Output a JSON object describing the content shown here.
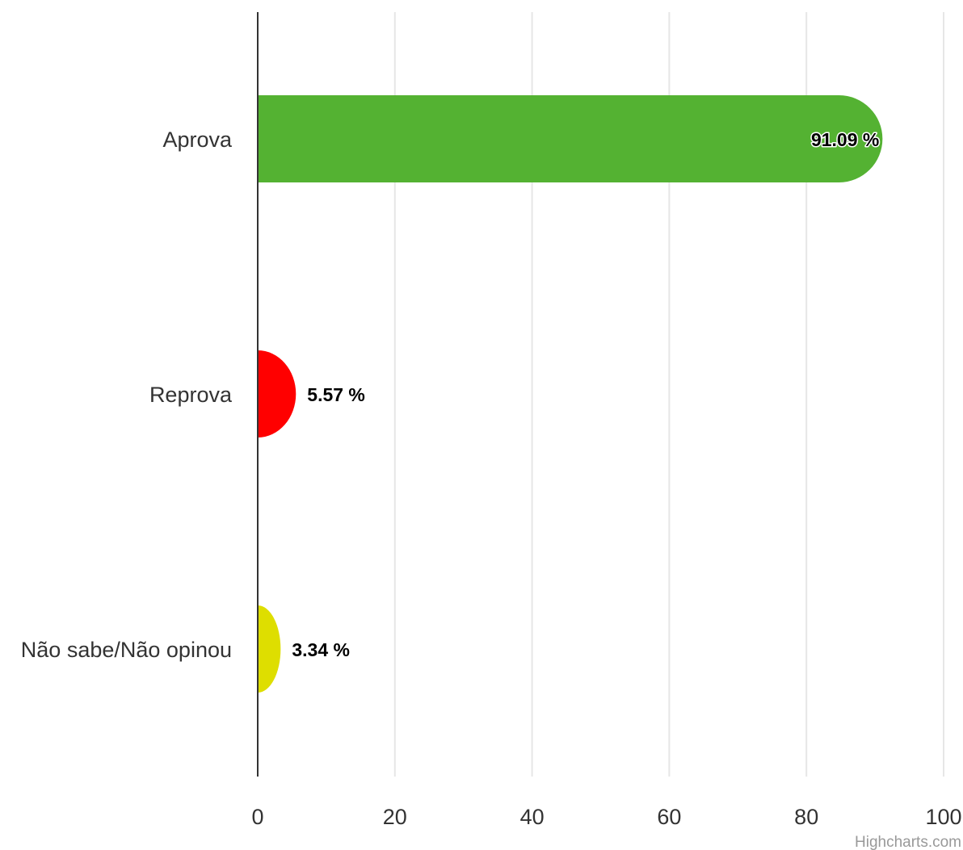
{
  "chart_data": {
    "type": "bar",
    "orientation": "horizontal",
    "categories": [
      "Aprova",
      "Reprova",
      "Não sabe/Não opinou"
    ],
    "values": [
      91.09,
      5.57,
      3.34
    ],
    "data_labels": [
      "91.09 %",
      "5.57 %",
      "3.34 %"
    ],
    "colors": [
      "#54b232",
      "#ff0000",
      "#dede00"
    ],
    "x_ticks": [
      "0",
      "20",
      "40",
      "60",
      "80",
      "100"
    ],
    "xlim": [
      0,
      100
    ],
    "grid": true,
    "legend": "none"
  },
  "credits": "Highcharts.com"
}
